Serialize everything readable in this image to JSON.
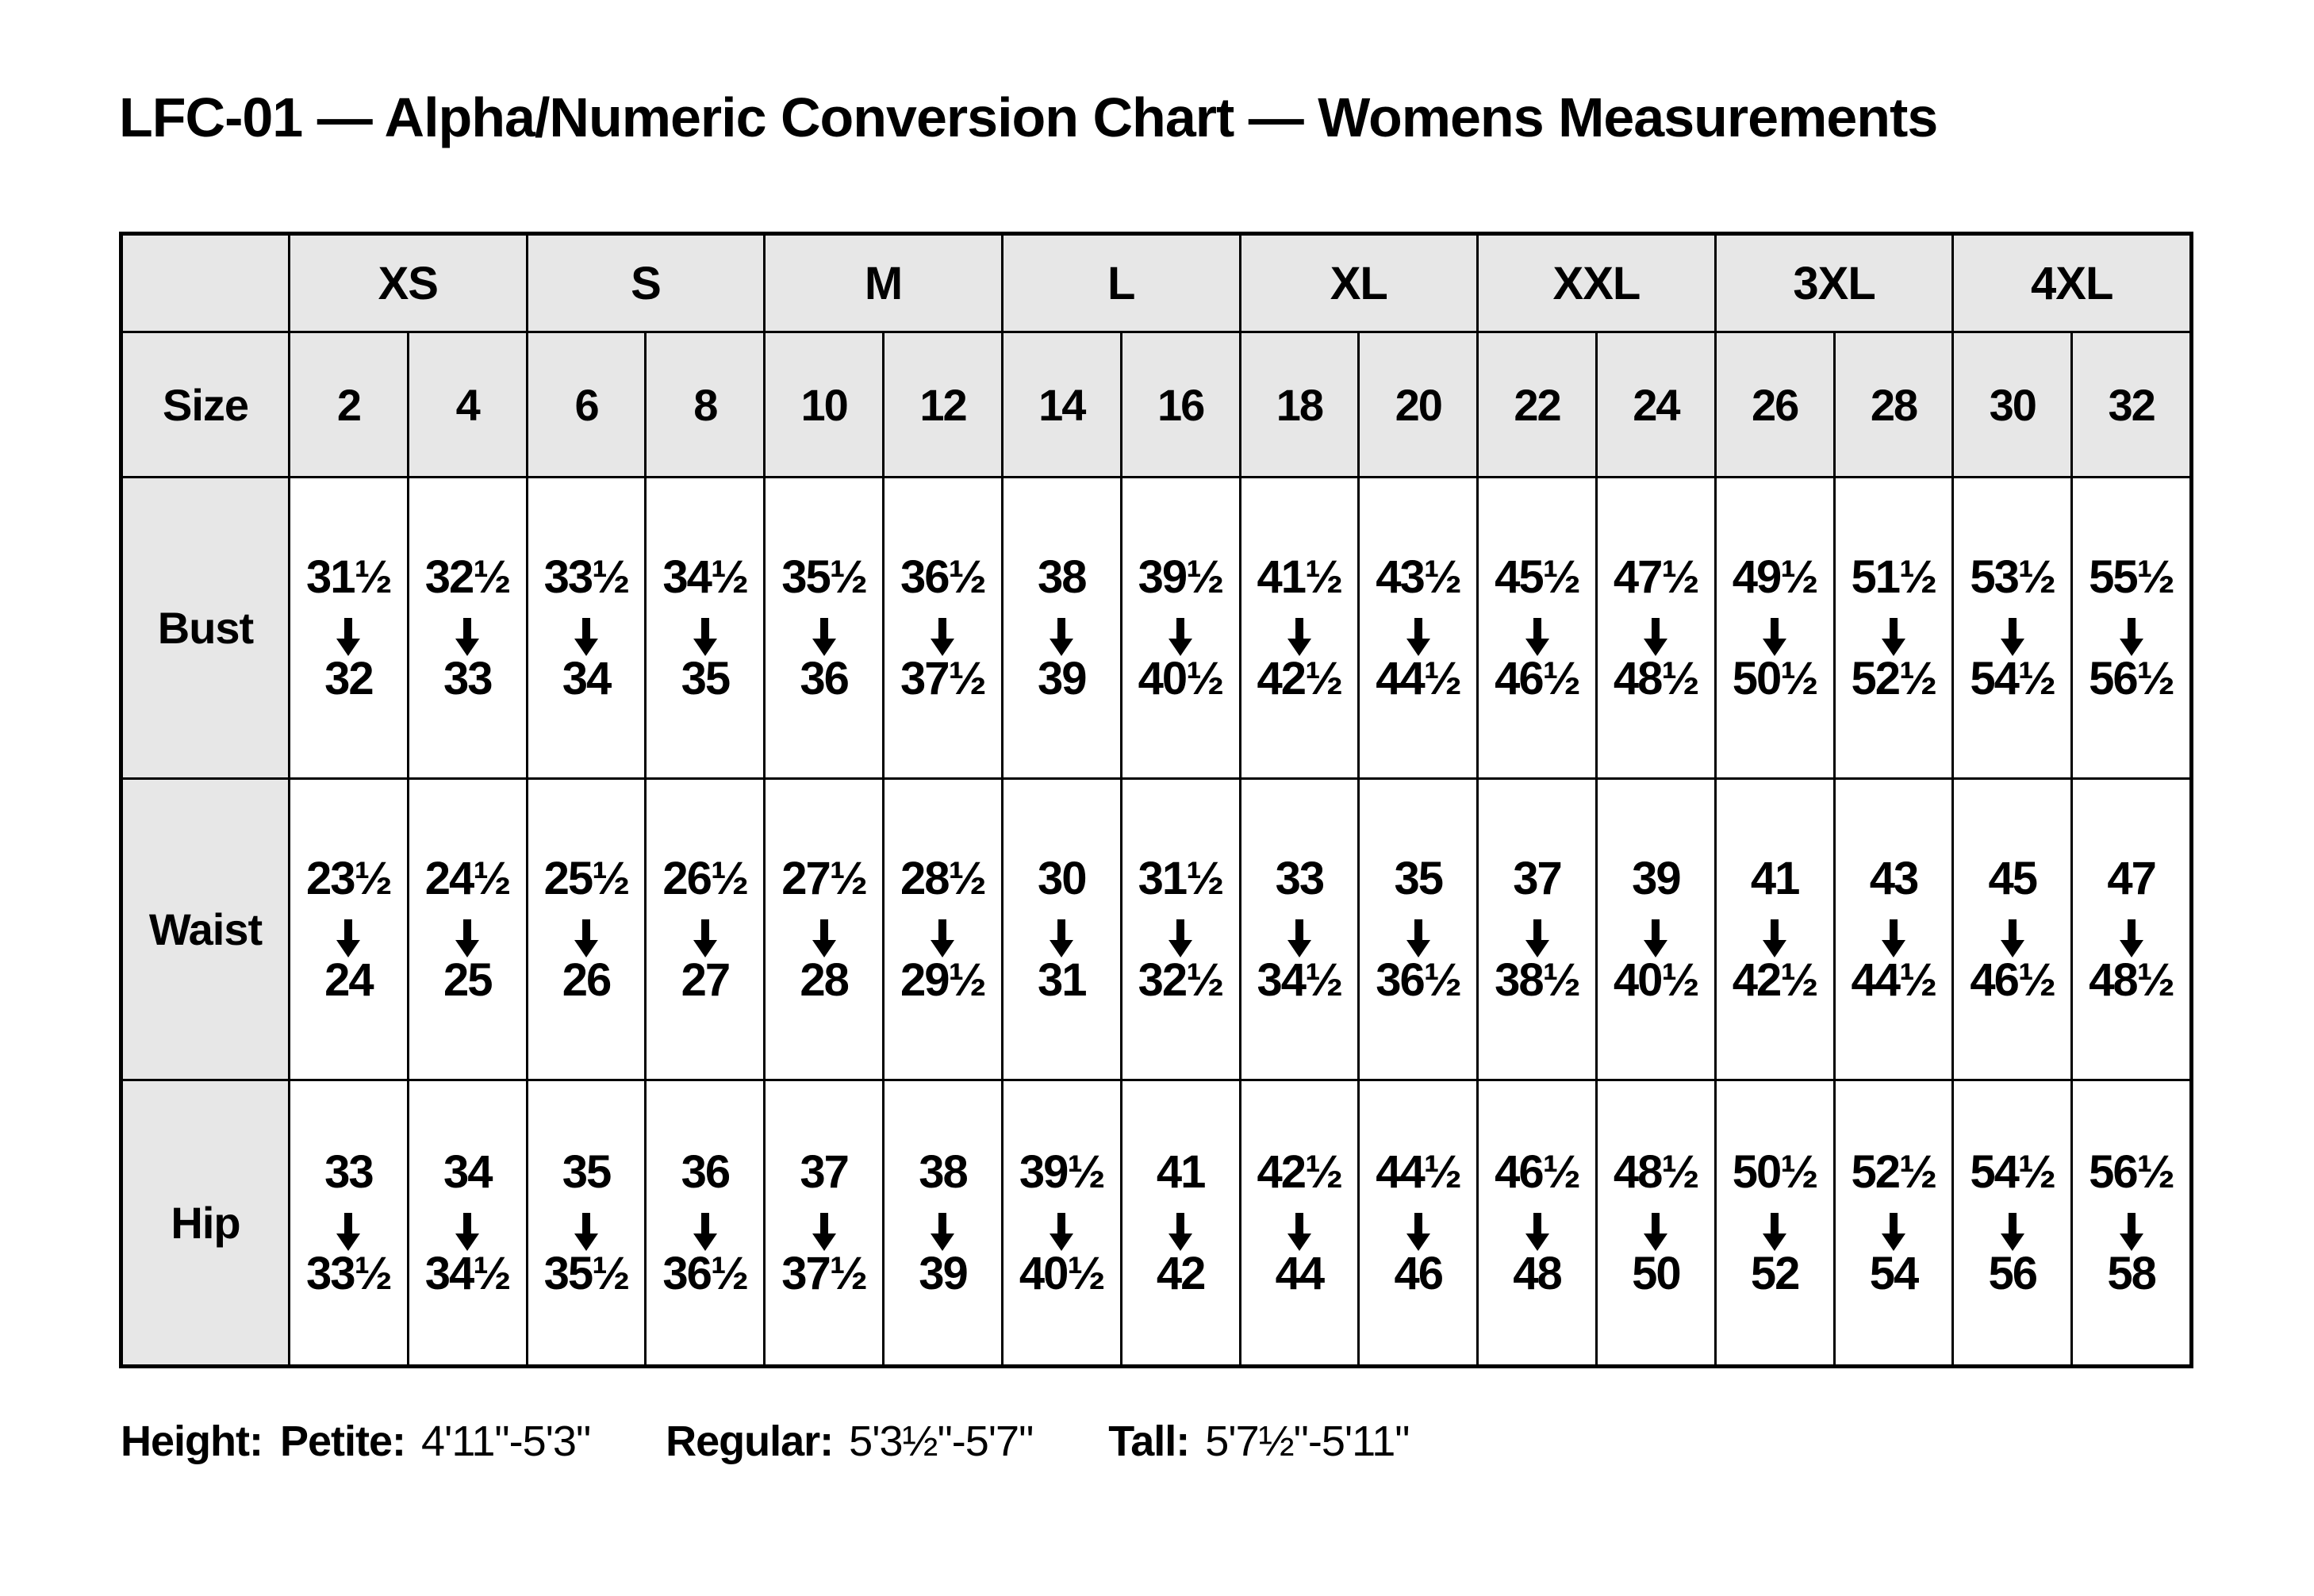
{
  "title": "LFC-01 — Alpha/Numeric Conversion Chart — Womens Measurements",
  "colors": {
    "header_bg": "#e7e7e7",
    "border": "#000000",
    "text": "#000000",
    "background": "#ffffff"
  },
  "table": {
    "alpha_sizes": [
      "XS",
      "S",
      "M",
      "L",
      "XL",
      "XXL",
      "3XL",
      "4XL"
    ],
    "size_row_label": "Size",
    "numeric_sizes": [
      "2",
      "4",
      "6",
      "8",
      "10",
      "12",
      "14",
      "16",
      "18",
      "20",
      "22",
      "24",
      "26",
      "28",
      "30",
      "32"
    ],
    "rows": [
      {
        "label": "Bust",
        "cells": [
          {
            "from": "31½",
            "to": "32"
          },
          {
            "from": "32½",
            "to": "33"
          },
          {
            "from": "33½",
            "to": "34"
          },
          {
            "from": "34½",
            "to": "35"
          },
          {
            "from": "35½",
            "to": "36"
          },
          {
            "from": "36½",
            "to": "37½"
          },
          {
            "from": "38",
            "to": "39"
          },
          {
            "from": "39½",
            "to": "40½"
          },
          {
            "from": "41½",
            "to": "42½"
          },
          {
            "from": "43½",
            "to": "44½"
          },
          {
            "from": "45½",
            "to": "46½"
          },
          {
            "from": "47½",
            "to": "48½"
          },
          {
            "from": "49½",
            "to": "50½"
          },
          {
            "from": "51½",
            "to": "52½"
          },
          {
            "from": "53½",
            "to": "54½"
          },
          {
            "from": "55½",
            "to": "56½"
          }
        ]
      },
      {
        "label": "Waist",
        "cells": [
          {
            "from": "23½",
            "to": "24"
          },
          {
            "from": "24½",
            "to": "25"
          },
          {
            "from": "25½",
            "to": "26"
          },
          {
            "from": "26½",
            "to": "27"
          },
          {
            "from": "27½",
            "to": "28"
          },
          {
            "from": "28½",
            "to": "29½"
          },
          {
            "from": "30",
            "to": "31"
          },
          {
            "from": "31½",
            "to": "32½"
          },
          {
            "from": "33",
            "to": "34½"
          },
          {
            "from": "35",
            "to": "36½"
          },
          {
            "from": "37",
            "to": "38½"
          },
          {
            "from": "39",
            "to": "40½"
          },
          {
            "from": "41",
            "to": "42½"
          },
          {
            "from": "43",
            "to": "44½"
          },
          {
            "from": "45",
            "to": "46½"
          },
          {
            "from": "47",
            "to": "48½"
          }
        ]
      },
      {
        "label": "Hip",
        "cells": [
          {
            "from": "33",
            "to": "33½"
          },
          {
            "from": "34",
            "to": "34½"
          },
          {
            "from": "35",
            "to": "35½"
          },
          {
            "from": "36",
            "to": "36½"
          },
          {
            "from": "37",
            "to": "37½"
          },
          {
            "from": "38",
            "to": "39"
          },
          {
            "from": "39½",
            "to": "40½"
          },
          {
            "from": "41",
            "to": "42"
          },
          {
            "from": "42½",
            "to": "44"
          },
          {
            "from": "44½",
            "to": "46"
          },
          {
            "from": "46½",
            "to": "48"
          },
          {
            "from": "48½",
            "to": "50"
          },
          {
            "from": "50½",
            "to": "52"
          },
          {
            "from": "52½",
            "to": "54"
          },
          {
            "from": "54½",
            "to": "56"
          },
          {
            "from": "56½",
            "to": "58"
          }
        ]
      }
    ]
  },
  "footer": {
    "height_label": "Height:",
    "entries": [
      {
        "label": "Petite:",
        "value": "4'11\"-5'3\""
      },
      {
        "label": "Regular:",
        "value": "5'3½\"-5'7\""
      },
      {
        "label": "Tall:",
        "value": "5'7½\"-5'11\""
      }
    ]
  }
}
